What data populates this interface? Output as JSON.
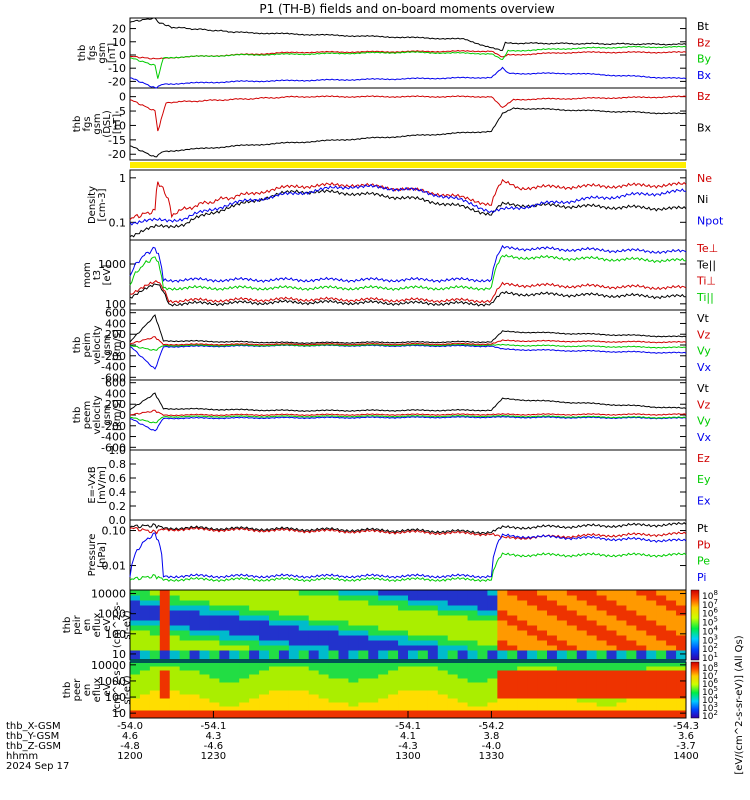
{
  "title": "P1 (TH-B) fields and on-board moments overview",
  "colors": {
    "black": "#000000",
    "red": "#d00000",
    "green": "#00cc00",
    "blue": "#0000ee",
    "yellow": "#ffee00",
    "cyan": "#00aaaa"
  },
  "panels": [
    {
      "id": "fgs_a",
      "ylabel": [
        "thb",
        "fgs",
        "gsm",
        "[nT]"
      ],
      "ticks": [
        "20",
        "10",
        "0",
        "-10",
        "-20"
      ],
      "legend": [
        {
          "t": "Bt",
          "c": "black"
        },
        {
          "t": "Bz",
          "c": "red"
        },
        {
          "t": "By",
          "c": "green"
        },
        {
          "t": "Bx",
          "c": "blue"
        }
      ]
    },
    {
      "id": "fgs_b",
      "ylabel": [
        "thb",
        "fgs",
        "gsm",
        "(DSL)",
        "[nT]"
      ],
      "ticks": [
        "0",
        "-5",
        "-10",
        "-15",
        "-20"
      ],
      "legend": [
        {
          "t": "Bz",
          "c": "red"
        },
        {
          "t": "Bx",
          "c": "black"
        }
      ]
    },
    {
      "id": "density",
      "ylabel": [
        "Density",
        "[cm-3]"
      ],
      "ticks": [
        "1",
        "0.1"
      ],
      "legend": [
        {
          "t": "Ne",
          "c": "red"
        },
        {
          "t": "Ni",
          "c": "black"
        },
        {
          "t": "Npot",
          "c": "blue"
        }
      ]
    },
    {
      "id": "temp",
      "ylabel": [
        "mom",
        "t3",
        "[eV]"
      ],
      "ticks": [
        "1000",
        "100"
      ],
      "legend": [
        {
          "t": "Te⊥",
          "c": "red"
        },
        {
          "t": "Te||",
          "c": "black"
        },
        {
          "t": "Ti⊥",
          "c": "red"
        },
        {
          "t": "Ti||",
          "c": "green"
        }
      ]
    },
    {
      "id": "peim",
      "ylabel": [
        "thb",
        "peim",
        "velocity",
        "gsm",
        "[km/s]"
      ],
      "ticks": [
        "600",
        "400",
        "200",
        "0",
        "-200",
        "-400",
        "-600"
      ],
      "legend": [
        {
          "t": "Vt",
          "c": "black"
        },
        {
          "t": "Vz",
          "c": "red"
        },
        {
          "t": "Vy",
          "c": "green"
        },
        {
          "t": "Vx",
          "c": "blue"
        }
      ]
    },
    {
      "id": "peem",
      "ylabel": [
        "thb",
        "peem",
        "velocity",
        "gsm",
        "[km/s]"
      ],
      "ticks": [
        "600",
        "400",
        "200",
        "0",
        "-200",
        "-400",
        "-600"
      ],
      "legend": [
        {
          "t": "Vt",
          "c": "black"
        },
        {
          "t": "Vz",
          "c": "red"
        },
        {
          "t": "Vy",
          "c": "green"
        },
        {
          "t": "Vx",
          "c": "blue"
        }
      ]
    },
    {
      "id": "efield",
      "ylabel": [
        "E=-VxB",
        "[mV/m]"
      ],
      "ticks": [
        "1.0",
        "0.8",
        "0.6",
        "0.4",
        "0.2",
        "0.0"
      ],
      "legend": [
        {
          "t": "Ez",
          "c": "red"
        },
        {
          "t": "Ey",
          "c": "green"
        },
        {
          "t": "Ex",
          "c": "blue"
        }
      ]
    },
    {
      "id": "pressure",
      "ylabel": [
        "Pressure",
        "[nPa]"
      ],
      "ticks": [
        "0.10",
        "0.01"
      ],
      "legend": [
        {
          "t": "Pt",
          "c": "black"
        },
        {
          "t": "Pb",
          "c": "red"
        },
        {
          "t": "Pe",
          "c": "green"
        },
        {
          "t": "Pi",
          "c": "blue"
        }
      ]
    },
    {
      "id": "peir",
      "ylabel": [
        "thb",
        "peir",
        "en",
        "eflux",
        "eV",
        "(cm^2-s-",
        "sr-eV)"
      ],
      "ticks": [
        "10000",
        "1000",
        "100",
        "10"
      ]
    },
    {
      "id": "peer",
      "ylabel": [
        "thb",
        "peer",
        "en",
        "eflux",
        "eV",
        "(cm^2-s-",
        "sr-eV)"
      ],
      "ticks": [
        "10000",
        "1000",
        "100",
        "10"
      ]
    }
  ],
  "colorbar": {
    "label": "[eV/(cm^2-s-sr-eV)] (All Qs)",
    "ticks_ion": [
      "10^8",
      "10^7",
      "10^6",
      "10^5",
      "10^4",
      "10^3",
      "10^2",
      "10^1"
    ],
    "ticks_ele": [
      "10^8",
      "10^7",
      "10^6",
      "10^5",
      "10^4",
      "10^3",
      "10^2"
    ]
  },
  "xaxis": {
    "rows": [
      {
        "label": "thb_X-GSM",
        "values": [
          "-54.0",
          "-54.1",
          "-54.1",
          "-54.2",
          "-54.3"
        ]
      },
      {
        "label": "thb_Y-GSM",
        "values": [
          "4.6",
          "4.3",
          "4.1",
          "3.8",
          "3.6"
        ]
      },
      {
        "label": "thb_Z-GSM",
        "values": [
          "-4.8",
          "-4.6",
          "-4.3",
          "-4.0",
          "-3.7"
        ]
      },
      {
        "label": "hhmm",
        "values": [
          "1200",
          "1230",
          "1300",
          "1330",
          "1400"
        ]
      }
    ],
    "date": "2024 Sep 17"
  },
  "chart_data": {
    "type": "line",
    "title": "P1 (TH-B) fields and on-board moments overview",
    "x": {
      "label": "hhmm",
      "ticks": [
        "1200",
        "1230",
        "1300",
        "1330",
        "1400"
      ],
      "range": [
        1200,
        1400
      ]
    },
    "series": [
      {
        "panel": "fgs_a",
        "name": "Bt",
        "points": [
          [
            1200,
            25
          ],
          [
            1209,
            28
          ],
          [
            1210,
            25
          ],
          [
            1215,
            21
          ],
          [
            1240,
            17
          ],
          [
            1320,
            12
          ],
          [
            1334,
            3
          ],
          [
            1335,
            9
          ],
          [
            1400,
            8
          ]
        ]
      },
      {
        "panel": "fgs_a",
        "name": "Bz",
        "points": [
          [
            1200,
            -1
          ],
          [
            1209,
            -3
          ],
          [
            1210,
            -3
          ],
          [
            1214,
            -2
          ],
          [
            1260,
            2
          ],
          [
            1330,
            3
          ],
          [
            1334,
            -2
          ],
          [
            1336,
            0
          ],
          [
            1360,
            2
          ],
          [
            1400,
            2
          ]
        ]
      },
      {
        "panel": "fgs_a",
        "name": "By",
        "points": [
          [
            1200,
            -2
          ],
          [
            1209,
            -8
          ],
          [
            1210,
            -18
          ],
          [
            1212,
            -2
          ],
          [
            1240,
            0
          ],
          [
            1300,
            2
          ],
          [
            1330,
            1
          ],
          [
            1334,
            -4
          ],
          [
            1336,
            3
          ],
          [
            1360,
            5
          ],
          [
            1380,
            6
          ],
          [
            1400,
            6
          ]
        ]
      },
      {
        "panel": "fgs_a",
        "name": "Bx",
        "points": [
          [
            1200,
            -17
          ],
          [
            1209,
            -25
          ],
          [
            1212,
            -22
          ],
          [
            1240,
            -20
          ],
          [
            1330,
            -17
          ],
          [
            1334,
            -10
          ],
          [
            1336,
            -14
          ],
          [
            1360,
            -14
          ],
          [
            1400,
            -18
          ]
        ]
      },
      {
        "panel": "fgs_b",
        "name": "Bz",
        "points": [
          [
            1200,
            -1
          ],
          [
            1209,
            -5
          ],
          [
            1210,
            -12
          ],
          [
            1213,
            -2
          ],
          [
            1260,
            0
          ],
          [
            1330,
            0
          ],
          [
            1334,
            -4
          ],
          [
            1338,
            -1
          ],
          [
            1400,
            0
          ]
        ]
      },
      {
        "panel": "fgs_b",
        "name": "Bx",
        "points": [
          [
            1200,
            -17
          ],
          [
            1209,
            -21
          ],
          [
            1212,
            -19
          ],
          [
            1240,
            -17
          ],
          [
            1330,
            -12
          ],
          [
            1334,
            -6
          ],
          [
            1338,
            -4
          ],
          [
            1400,
            -6
          ]
        ]
      },
      {
        "panel": "density",
        "name": "Ne",
        "points": [
          [
            1200,
            0.12
          ],
          [
            1209,
            0.18
          ],
          [
            1210,
            0.8
          ],
          [
            1215,
            0.15
          ],
          [
            1240,
            0.4
          ],
          [
            1260,
            0.65
          ],
          [
            1280,
            0.7
          ],
          [
            1300,
            0.55
          ],
          [
            1330,
            0.25
          ],
          [
            1334,
            0.8
          ],
          [
            1340,
            0.6
          ],
          [
            1400,
            0.7
          ]
        ]
      },
      {
        "panel": "density",
        "name": "Ni",
        "points": [
          [
            1200,
            0.05
          ],
          [
            1210,
            0.08
          ],
          [
            1220,
            0.09
          ],
          [
            1240,
            0.25
          ],
          [
            1260,
            0.5
          ],
          [
            1280,
            0.45
          ],
          [
            1300,
            0.35
          ],
          [
            1330,
            0.15
          ],
          [
            1334,
            0.25
          ],
          [
            1400,
            0.2
          ]
        ]
      },
      {
        "panel": "density",
        "name": "Npot",
        "points": [
          [
            1200,
            0.1
          ],
          [
            1220,
            0.12
          ],
          [
            1260,
            0.45
          ],
          [
            1280,
            0.65
          ],
          [
            1300,
            0.55
          ],
          [
            1330,
            0.17
          ],
          [
            1400,
            0.5
          ]
        ]
      },
      {
        "panel": "temp",
        "name": "Te⊥",
        "points": [
          [
            1200,
            180
          ],
          [
            1210,
            350
          ],
          [
            1214,
            120
          ],
          [
            1260,
            130
          ],
          [
            1330,
            120
          ],
          [
            1334,
            300
          ],
          [
            1400,
            250
          ]
        ]
      },
      {
        "panel": "temp",
        "name": "Te||",
        "points": [
          [
            1200,
            150
          ],
          [
            1210,
            300
          ],
          [
            1214,
            100
          ],
          [
            1260,
            110
          ],
          [
            1330,
            100
          ],
          [
            1334,
            180
          ],
          [
            1400,
            150
          ]
        ]
      },
      {
        "panel": "temp",
        "name": "Ti⊥",
        "points": [
          [
            1200,
            500
          ],
          [
            1209,
            2500
          ],
          [
            1212,
            400
          ],
          [
            1260,
            400
          ],
          [
            1330,
            400
          ],
          [
            1334,
            2500
          ],
          [
            1400,
            2000
          ]
        ]
      },
      {
        "panel": "temp",
        "name": "Ti||",
        "points": [
          [
            1200,
            300
          ],
          [
            1209,
            1500
          ],
          [
            1212,
            250
          ],
          [
            1260,
            250
          ],
          [
            1330,
            250
          ],
          [
            1334,
            1500
          ],
          [
            1400,
            1200
          ]
        ]
      },
      {
        "panel": "peim",
        "name": "Vt",
        "points": [
          [
            1200,
            60
          ],
          [
            1209,
            550
          ],
          [
            1212,
            80
          ],
          [
            1260,
            40
          ],
          [
            1330,
            60
          ],
          [
            1334,
            250
          ],
          [
            1400,
            150
          ]
        ]
      },
      {
        "panel": "peim",
        "name": "Vx",
        "points": [
          [
            1200,
            -20
          ],
          [
            1209,
            -450
          ],
          [
            1212,
            -30
          ],
          [
            1260,
            -10
          ],
          [
            1330,
            -20
          ],
          [
            1334,
            -80
          ],
          [
            1400,
            -150
          ]
        ]
      },
      {
        "panel": "peim",
        "name": "Vy",
        "points": [
          [
            1200,
            -10
          ],
          [
            1209,
            -100
          ],
          [
            1212,
            -10
          ],
          [
            1330,
            0
          ],
          [
            1400,
            -50
          ]
        ]
      },
      {
        "panel": "peim",
        "name": "Vz",
        "points": [
          [
            1200,
            20
          ],
          [
            1209,
            150
          ],
          [
            1212,
            10
          ],
          [
            1330,
            20
          ],
          [
            1334,
            80
          ],
          [
            1400,
            50
          ]
        ]
      },
      {
        "panel": "peem",
        "name": "Vt",
        "points": [
          [
            1200,
            100
          ],
          [
            1209,
            400
          ],
          [
            1212,
            120
          ],
          [
            1260,
            80
          ],
          [
            1330,
            90
          ],
          [
            1334,
            300
          ],
          [
            1400,
            120
          ]
        ]
      },
      {
        "panel": "peem",
        "name": "Vx",
        "points": [
          [
            1200,
            -60
          ],
          [
            1209,
            -300
          ],
          [
            1212,
            -60
          ],
          [
            1330,
            -40
          ],
          [
            1400,
            -60
          ]
        ]
      },
      {
        "panel": "peem",
        "name": "Vy",
        "points": [
          [
            1200,
            -40
          ],
          [
            1209,
            -150
          ],
          [
            1212,
            -30
          ],
          [
            1330,
            -20
          ],
          [
            1400,
            -50
          ]
        ]
      },
      {
        "panel": "peem",
        "name": "Vz",
        "points": [
          [
            1200,
            0
          ],
          [
            1209,
            80
          ],
          [
            1212,
            0
          ],
          [
            1330,
            10
          ],
          [
            1400,
            10
          ]
        ]
      },
      {
        "panel": "pressure",
        "name": "Pt",
        "points": [
          [
            1200,
            0.13
          ],
          [
            1209,
            0.14
          ],
          [
            1212,
            0.12
          ],
          [
            1300,
            0.1
          ],
          [
            1330,
            0.09
          ],
          [
            1334,
            0.12
          ],
          [
            1400,
            0.15
          ]
        ]
      },
      {
        "panel": "pressure",
        "name": "Pb",
        "points": [
          [
            1200,
            0.12
          ],
          [
            1209,
            0.09
          ],
          [
            1212,
            0.11
          ],
          [
            1300,
            0.09
          ],
          [
            1330,
            0.08
          ],
          [
            1334,
            0.06
          ],
          [
            1360,
            0.07
          ],
          [
            1400,
            0.08
          ]
        ]
      },
      {
        "panel": "pressure",
        "name": "Pe",
        "points": [
          [
            1200,
            0.004
          ],
          [
            1209,
            0.005
          ],
          [
            1212,
            0.004
          ],
          [
            1330,
            0.004
          ],
          [
            1334,
            0.02
          ],
          [
            1400,
            0.02
          ]
        ]
      },
      {
        "panel": "pressure",
        "name": "Pi",
        "points": [
          [
            1200,
            0.005
          ],
          [
            1209,
            0.08
          ],
          [
            1212,
            0.005
          ],
          [
            1330,
            0.005
          ],
          [
            1334,
            0.07
          ],
          [
            1400,
            0.05
          ]
        ]
      }
    ]
  }
}
